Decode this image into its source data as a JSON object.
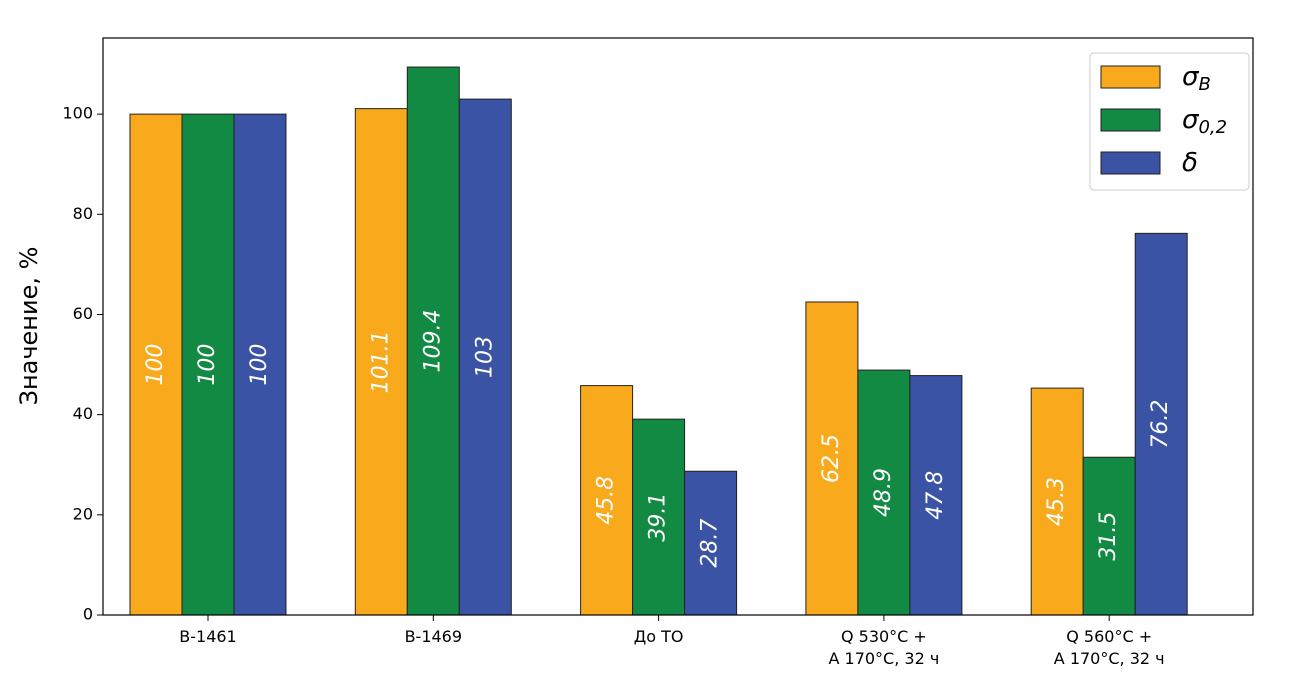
{
  "chart_data": {
    "type": "bar",
    "y_label": "Значение, %",
    "categories": [
      "B-1461",
      "B-1469",
      "До ТО",
      "Q 530°C +\nA 170°C, 32 ч",
      "Q 560°C +\nA 170°C, 32 ч"
    ],
    "series": [
      {
        "name": "σB",
        "color": "#f9a91c",
        "values": [
          100,
          101.1,
          45.8,
          62.5,
          45.3
        ]
      },
      {
        "name": "σ0,2",
        "color": "#138a43",
        "values": [
          100,
          109.4,
          39.1,
          48.9,
          31.5
        ]
      },
      {
        "name": "δ",
        "color": "#3a53a4",
        "values": [
          100,
          103,
          28.7,
          47.8,
          76.2
        ]
      }
    ],
    "ylim": [
      0,
      115.2
    ],
    "yticks": [
      0,
      20,
      40,
      60,
      80,
      100
    ],
    "legend": "upper right"
  }
}
